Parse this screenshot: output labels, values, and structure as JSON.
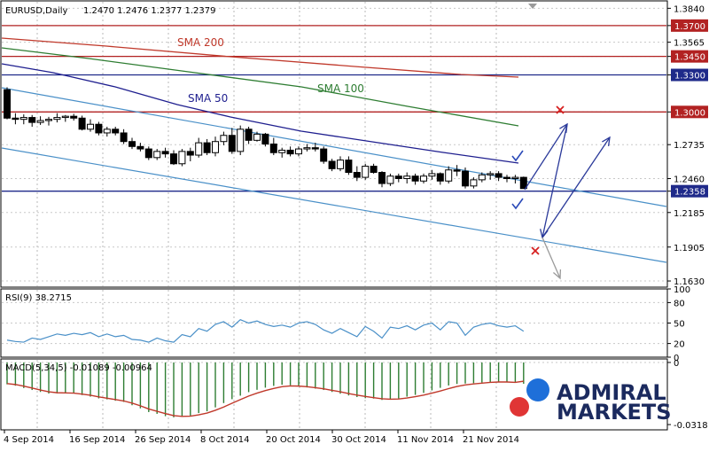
{
  "header": {
    "symbol": "EURUSD,Daily",
    "ohlc": "1.2470 1.2476 1.2377 1.2379"
  },
  "colors": {
    "sma200": "#c0392b",
    "sma100": "#2e7d32",
    "sma50": "#1f1f8f",
    "channel": "#4a90c8",
    "level_red": "#b22222",
    "level_blue": "#1f2a8a",
    "rsi": "#4a90c8",
    "macd_signal": "#c0392b",
    "macd_hist": "#2e7d32",
    "arrow": "#2b3a9a",
    "arrow_down": "#9a9a9a",
    "check": "#2b4ab8",
    "cross": "#d62020",
    "logo_blue": "#1e6fd9",
    "logo_red": "#e03535",
    "logo_text": "#1b2a5e"
  },
  "indicators": {
    "sma200": "SMA 200",
    "sma100": "SMA 100",
    "sma50": "SMA 50",
    "rsi": "RSI(9) 38.2715",
    "macd": "MACD(5,34,5) -0.01089 -0.00964"
  },
  "logo": {
    "line1": "ADMIRAL",
    "line2": "MARKETS"
  },
  "chart_data": [
    {
      "type": "candlestick",
      "title": "EURUSD,Daily",
      "ylim": [
        1.158,
        1.39
      ],
      "y_tick_labels": [
        "1.3840",
        "1.3700",
        "1.3565",
        "1.3450",
        "1.3300",
        "1.3000",
        "1.2735",
        "1.2460",
        "1.2358",
        "1.2185",
        "1.1905",
        "1.1630"
      ],
      "highlighted_levels": [
        {
          "value": 1.37,
          "label": "1.3700",
          "color": "red"
        },
        {
          "value": 1.345,
          "label": "1.3450",
          "color": "red"
        },
        {
          "value": 1.33,
          "label": "1.3300",
          "color": "blue"
        },
        {
          "value": 1.3,
          "label": "1.3000",
          "color": "red"
        },
        {
          "value": 1.2358,
          "label": "1.2358",
          "color": "blue"
        }
      ],
      "x_tick_labels": [
        "4 Sep 2014",
        "16 Sep 2014",
        "26 Sep 2014",
        "8 Oct 2014",
        "20 Oct 2014",
        "30 Oct 2014",
        "11 Nov 2014",
        "21 Nov 2014"
      ],
      "candles": [
        [
          1.318,
          1.32,
          1.294,
          1.295
        ],
        [
          1.295,
          1.299,
          1.29,
          1.294
        ],
        [
          1.294,
          1.298,
          1.29,
          1.2955
        ],
        [
          1.2955,
          1.2975,
          1.288,
          1.2915
        ],
        [
          1.2915,
          1.2965,
          1.2895,
          1.293
        ],
        [
          1.293,
          1.296,
          1.289,
          1.294
        ],
        [
          1.294,
          1.299,
          1.2915,
          1.2955
        ],
        [
          1.2955,
          1.2975,
          1.292,
          1.2965
        ],
        [
          1.2965,
          1.2985,
          1.293,
          1.295
        ],
        [
          1.295,
          1.297,
          1.285,
          1.286
        ],
        [
          1.286,
          1.294,
          1.284,
          1.29
        ],
        [
          1.29,
          1.292,
          1.281,
          1.283
        ],
        [
          1.283,
          1.288,
          1.28,
          1.286
        ],
        [
          1.286,
          1.288,
          1.281,
          1.283
        ],
        [
          1.283,
          1.286,
          1.274,
          1.276
        ],
        [
          1.276,
          1.279,
          1.27,
          1.272
        ],
        [
          1.272,
          1.275,
          1.268,
          1.27
        ],
        [
          1.27,
          1.272,
          1.261,
          1.263
        ],
        [
          1.263,
          1.27,
          1.261,
          1.268
        ],
        [
          1.268,
          1.271,
          1.263,
          1.266
        ],
        [
          1.266,
          1.269,
          1.257,
          1.258
        ],
        [
          1.258,
          1.27,
          1.256,
          1.268
        ],
        [
          1.268,
          1.271,
          1.26,
          1.265
        ],
        [
          1.265,
          1.279,
          1.263,
          1.275
        ],
        [
          1.275,
          1.278,
          1.265,
          1.267
        ],
        [
          1.267,
          1.28,
          1.264,
          1.276
        ],
        [
          1.276,
          1.284,
          1.273,
          1.281
        ],
        [
          1.281,
          1.287,
          1.266,
          1.268
        ],
        [
          1.268,
          1.289,
          1.265,
          1.286
        ],
        [
          1.286,
          1.288,
          1.274,
          1.277
        ],
        [
          1.277,
          1.284,
          1.276,
          1.282
        ],
        [
          1.282,
          1.283,
          1.272,
          1.274
        ],
        [
          1.274,
          1.279,
          1.265,
          1.267
        ],
        [
          1.267,
          1.271,
          1.263,
          1.269
        ],
        [
          1.269,
          1.272,
          1.264,
          1.266
        ],
        [
          1.266,
          1.272,
          1.264,
          1.27
        ],
        [
          1.27,
          1.274,
          1.268,
          1.271
        ],
        [
          1.271,
          1.275,
          1.268,
          1.27
        ],
        [
          1.27,
          1.272,
          1.258,
          1.26
        ],
        [
          1.26,
          1.262,
          1.252,
          1.254
        ],
        [
          1.254,
          1.264,
          1.252,
          1.261
        ],
        [
          1.261,
          1.264,
          1.249,
          1.251
        ],
        [
          1.251,
          1.256,
          1.244,
          1.247
        ],
        [
          1.247,
          1.258,
          1.245,
          1.256
        ],
        [
          1.256,
          1.258,
          1.25,
          1.251
        ],
        [
          1.251,
          1.252,
          1.239,
          1.242
        ],
        [
          1.242,
          1.25,
          1.24,
          1.248
        ],
        [
          1.248,
          1.25,
          1.243,
          1.246
        ],
        [
          1.246,
          1.251,
          1.242,
          1.248
        ],
        [
          1.248,
          1.25,
          1.241,
          1.244
        ],
        [
          1.244,
          1.25,
          1.242,
          1.248
        ],
        [
          1.248,
          1.253,
          1.245,
          1.25
        ],
        [
          1.25,
          1.251,
          1.241,
          1.244
        ],
        [
          1.244,
          1.256,
          1.242,
          1.253
        ],
        [
          1.253,
          1.257,
          1.248,
          1.252
        ],
        [
          1.252,
          1.255,
          1.238,
          1.24
        ],
        [
          1.24,
          1.247,
          1.238,
          1.245
        ],
        [
          1.245,
          1.251,
          1.243,
          1.249
        ],
        [
          1.249,
          1.252,
          1.245,
          1.25
        ],
        [
          1.25,
          1.252,
          1.244,
          1.247
        ],
        [
          1.247,
          1.249,
          1.243,
          1.246
        ],
        [
          1.246,
          1.249,
          1.242,
          1.247
        ],
        [
          1.247,
          1.2476,
          1.2377,
          1.2379
        ]
      ]
    },
    {
      "type": "line",
      "title": "RSI(9) 38.2715",
      "ylim": [
        0,
        100
      ],
      "y_tick_labels": [
        "100",
        "80",
        "50",
        "20",
        "0"
      ],
      "values": [
        25,
        23,
        22,
        28,
        26,
        30,
        34,
        32,
        35,
        33,
        36,
        30,
        34,
        30,
        32,
        26,
        25,
        22,
        28,
        24,
        22,
        33,
        30,
        42,
        38,
        48,
        52,
        44,
        55,
        50,
        53,
        48,
        45,
        47,
        44,
        50,
        52,
        48,
        40,
        35,
        42,
        36,
        30,
        45,
        38,
        28,
        44,
        42,
        46,
        40,
        47,
        50,
        40,
        52,
        50,
        32,
        44,
        48,
        50,
        46,
        44,
        46,
        38
      ]
    },
    {
      "type": "bar",
      "title": "MACD(5,34,5) -0.01089 -0.00964",
      "ylim": [
        -0.0345,
        0.0018
      ],
      "y_tick_labels": [
        "0",
        "-0.0318"
      ],
      "histogram": [
        -0.0112,
        -0.0119,
        -0.0131,
        -0.0141,
        -0.0151,
        -0.0159,
        -0.0158,
        -0.0155,
        -0.0158,
        -0.0167,
        -0.0175,
        -0.0184,
        -0.0189,
        -0.0196,
        -0.0202,
        -0.0219,
        -0.0235,
        -0.0254,
        -0.0263,
        -0.0275,
        -0.0281,
        -0.0277,
        -0.0272,
        -0.0259,
        -0.025,
        -0.023,
        -0.0208,
        -0.0188,
        -0.017,
        -0.0152,
        -0.014,
        -0.0129,
        -0.012,
        -0.0114,
        -0.0117,
        -0.0122,
        -0.0128,
        -0.0134,
        -0.0141,
        -0.0151,
        -0.016,
        -0.0169,
        -0.0177,
        -0.0183,
        -0.0185,
        -0.0192,
        -0.0189,
        -0.0184,
        -0.0175,
        -0.0166,
        -0.0156,
        -0.0143,
        -0.013,
        -0.0118,
        -0.011,
        -0.0108,
        -0.0106,
        -0.0103,
        -0.01,
        -0.0098,
        -0.0101,
        -0.0104,
        -0.0109
      ],
      "signal_line": [
        -0.0108,
        -0.0113,
        -0.0121,
        -0.0131,
        -0.0141,
        -0.015,
        -0.0155,
        -0.0156,
        -0.0157,
        -0.0162,
        -0.0168,
        -0.0176,
        -0.0183,
        -0.019,
        -0.0197,
        -0.0208,
        -0.0222,
        -0.0238,
        -0.025,
        -0.0262,
        -0.0272,
        -0.0276,
        -0.0275,
        -0.0268,
        -0.0259,
        -0.0245,
        -0.0228,
        -0.0209,
        -0.019,
        -0.0172,
        -0.0157,
        -0.0144,
        -0.0133,
        -0.0124,
        -0.012,
        -0.0121,
        -0.0124,
        -0.0129,
        -0.0135,
        -0.0143,
        -0.015,
        -0.0159,
        -0.0167,
        -0.0174,
        -0.018,
        -0.0186,
        -0.0188,
        -0.0187,
        -0.0182,
        -0.0175,
        -0.0167,
        -0.0157,
        -0.0146,
        -0.0134,
        -0.0123,
        -0.0115,
        -0.011,
        -0.0106,
        -0.0102,
        -0.01,
        -0.01,
        -0.0102,
        -0.0096
      ]
    }
  ]
}
